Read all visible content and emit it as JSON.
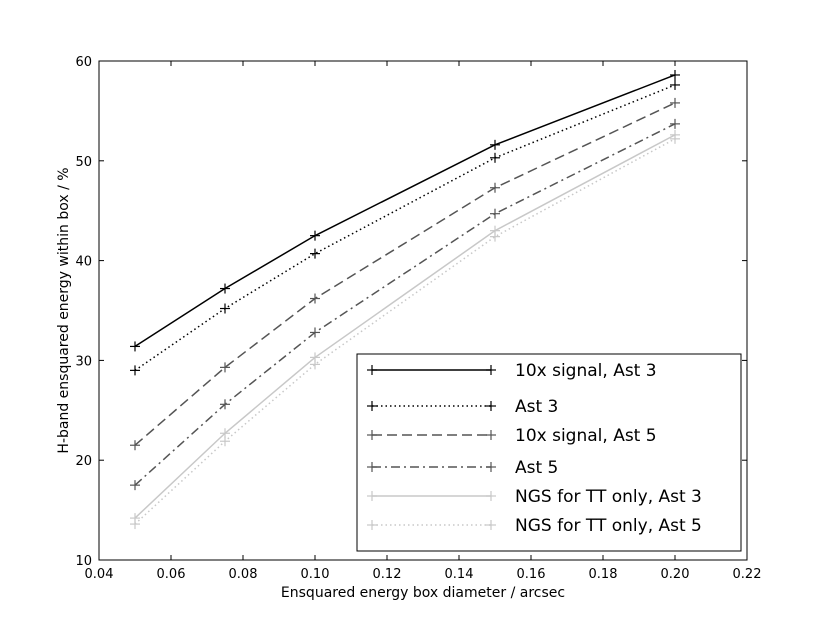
{
  "chart_data": {
    "type": "line",
    "title": "",
    "xlabel": "Ensquared energy box diameter / arcsec",
    "ylabel": "H-band ensquared energy within box / %",
    "xlim": [
      0.04,
      0.22
    ],
    "ylim": [
      10,
      60
    ],
    "x_ticks": [
      0.04,
      0.06,
      0.08,
      0.1,
      0.12,
      0.14,
      0.16,
      0.18,
      0.2,
      0.22
    ],
    "x_tick_labels": [
      "0.04",
      "0.06",
      "0.08",
      "0.10",
      "0.12",
      "0.14",
      "0.16",
      "0.18",
      "0.20",
      "0.22"
    ],
    "y_ticks": [
      10,
      20,
      30,
      40,
      50,
      60
    ],
    "y_tick_labels": [
      "10",
      "20",
      "30",
      "40",
      "50",
      "60"
    ],
    "grid": false,
    "legend_position": "lower-right",
    "x": [
      0.05,
      0.075,
      0.1,
      0.15,
      0.2
    ],
    "series": [
      {
        "name": "10x signal, Ast 3",
        "values": [
          31.4,
          37.2,
          42.5,
          51.6,
          58.6
        ],
        "color": "#000000",
        "dash": "solid"
      },
      {
        "name": "Ast 3",
        "values": [
          29.0,
          35.2,
          40.7,
          50.3,
          57.6
        ],
        "color": "#000000",
        "dash": "dotted"
      },
      {
        "name": "10x signal, Ast 5",
        "values": [
          21.5,
          29.3,
          36.2,
          47.3,
          55.8
        ],
        "color": "#555555",
        "dash": "dashed"
      },
      {
        "name": "Ast 5",
        "values": [
          17.5,
          25.6,
          32.8,
          44.7,
          53.7
        ],
        "color": "#555555",
        "dash": "dashdot"
      },
      {
        "name": "NGS for TT only, Ast 3",
        "values": [
          14.2,
          22.7,
          30.3,
          43.0,
          52.6
        ],
        "color": "#c8c8c8",
        "dash": "solid"
      },
      {
        "name": "NGS for TT only, Ast 5",
        "values": [
          13.6,
          21.9,
          29.6,
          42.4,
          52.2
        ],
        "color": "#c8c8c8",
        "dash": "dotted"
      }
    ]
  }
}
